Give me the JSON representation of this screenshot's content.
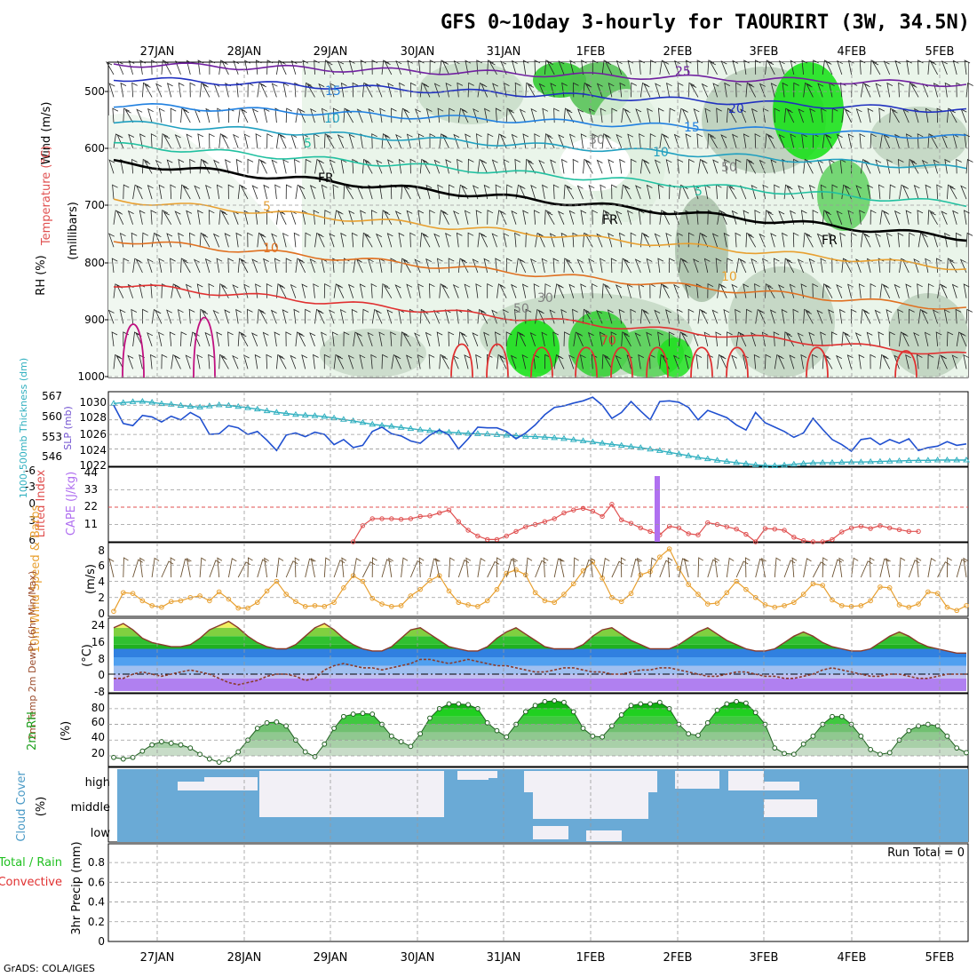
{
  "title": "GFS 0~10day 3-hourly for TAOURIRT (3W, 34.5N)",
  "credit": "GrADS: COLA/IGES",
  "dates": [
    "27JAN",
    "28JAN",
    "29JAN",
    "30JAN",
    "31JAN",
    "1FEB",
    "2FEB",
    "3FEB",
    "4FEB",
    "5FEB"
  ],
  "colors": {
    "temp_warm": "#e8a030",
    "temp_cold": "#2030c0",
    "freezing": "#000000",
    "slp": "#2050d0",
    "thickness": "#30b0c0",
    "lifted": "#e05050",
    "cape": "#b070f0",
    "wind10": "#e8a030",
    "rh2m": "#20c020",
    "cloud": "#6aaad6",
    "cloud_clear": "#f2f0f6"
  },
  "panels": {
    "upper_air": {
      "label_wind": "Wind (m/s)",
      "label_temp": "Temperature (°C)",
      "label_rh": "RH (%)",
      "label_p": "(millibars)",
      "y_ticks": [
        "500",
        "600",
        "700",
        "800",
        "900",
        "1000"
      ],
      "contour_labels": [
        "25",
        "20",
        "15",
        "15",
        "10",
        "10",
        "5",
        "5",
        "FR",
        "FR",
        "FR",
        "5",
        "10",
        "10",
        "50",
        "30",
        "50",
        "30",
        "70"
      ]
    },
    "pressure": {
      "label_thick": "1000-500mb Thickness (dm)",
      "label_slp": "SLP (mb)",
      "thick_ticks": [
        "567",
        "560",
        "553",
        "546"
      ],
      "slp_ticks": [
        "1030",
        "1028",
        "1026",
        "1024",
        "1022"
      ]
    },
    "stability": {
      "label_li": "Lifted Index",
      "label_cape": "CAPE (J/kg)",
      "li_ticks": [
        "-6",
        "-3",
        "0",
        "3",
        "6"
      ],
      "cape_ticks": [
        "44",
        "33",
        "22",
        "11"
      ]
    },
    "wind10": {
      "label": "10m Wind Speed & Barbs",
      "unit": "(m/s)",
      "ticks": [
        "8",
        "6",
        "4",
        "2",
        "0"
      ]
    },
    "temp2m": {
      "label": "2m Temp 2m DewPt (6hr Min/Max)",
      "unit": "(°C)",
      "ticks": [
        "24",
        "16",
        "8",
        "0",
        "-8"
      ]
    },
    "rh2m": {
      "label": "2m RH",
      "unit": "(%)",
      "ticks": [
        "80",
        "60",
        "40",
        "20"
      ]
    },
    "cloud": {
      "label": "Cloud Cover",
      "unit": "(%)",
      "ticks": [
        "high",
        "middle",
        "low"
      ]
    },
    "precip": {
      "label_total": "Total / Rain",
      "label_conv": "Convective",
      "label_precip": "3hr Precip (mm)",
      "ticks": [
        "0.8",
        "0.6",
        "0.4",
        "0.2",
        "0"
      ],
      "run_total": "Run Total = 0"
    }
  },
  "chart_data": [
    {
      "type": "line",
      "name": "SLP",
      "unit": "mb",
      "x_start": "26JAN 18Z",
      "x_step_hours": 3,
      "values": [
        1030.0,
        1027.5,
        1027.2,
        1028.6,
        1028.4,
        1027.7,
        1028.5,
        1028.0,
        1029.0,
        1028.3,
        1026.0,
        1026.1,
        1027.2,
        1026.9,
        1026.0,
        1026.4,
        1025.2,
        1023.8,
        1025.9,
        1026.2,
        1025.7,
        1026.3,
        1026.0,
        1024.6,
        1025.3,
        1024.2,
        1024.5,
        1026.4,
        1027.0,
        1026.1,
        1025.8,
        1025.1,
        1024.8,
        1025.9,
        1026.6,
        1025.9,
        1024.0,
        1025.4,
        1027.0,
        1026.9,
        1026.9,
        1026.4,
        1025.4,
        1026.2,
        1027.3,
        1028.7,
        1029.7,
        1029.9,
        1030.3,
        1030.6,
        1031.1,
        1030.0,
        1028.2,
        1029.0,
        1030.5,
        1029.2,
        1028.0,
        1030.5,
        1030.6,
        1030.4,
        1029.7,
        1028.0,
        1029.3,
        1028.8,
        1028.3,
        1027.3,
        1026.6,
        1029.0,
        1027.6,
        1027.0,
        1026.4,
        1025.6,
        1026.2,
        1028.2,
        1026.7,
        1025.3,
        1024.6,
        1023.7,
        1025.3,
        1025.5,
        1024.6,
        1025.3,
        1024.8,
        1025.4,
        1023.8,
        1024.2,
        1024.4,
        1025.0,
        1024.5,
        1024.7
      ]
    },
    {
      "type": "line",
      "name": "1000-500mb Thickness",
      "unit": "dm",
      "x_start": "26JAN 18Z",
      "x_step_hours": 3,
      "values": [
        566.3,
        566.6,
        566.9,
        567.0,
        566.7,
        566.2,
        566.0,
        565.6,
        565.3,
        565.0,
        565.4,
        565.8,
        565.6,
        565.2,
        564.8,
        564.3,
        563.7,
        563.2,
        562.8,
        562.4,
        562.2,
        562.0,
        561.7,
        561.2,
        560.7,
        560.2,
        559.6,
        559.0,
        558.6,
        558.3,
        557.9,
        557.5,
        557.1,
        556.8,
        556.5,
        556.2,
        556.0,
        555.8,
        555.7,
        555.6,
        555.4,
        555.2,
        555.0,
        554.8,
        554.7,
        554.5,
        554.3,
        554.0,
        553.6,
        553.2,
        552.8,
        552.4,
        552.0,
        551.6,
        551.2,
        550.8,
        550.3,
        549.8,
        549.2,
        548.6,
        548.0,
        547.4,
        546.9,
        546.4,
        546.0,
        545.6,
        545.2,
        544.8,
        544.6,
        544.5,
        544.7,
        545.0,
        545.3,
        545.5,
        545.6,
        545.6,
        545.7,
        545.8,
        545.8,
        545.9,
        546.0,
        546.1,
        546.2,
        546.3,
        546.4,
        546.4,
        546.5,
        546.5,
        546.5,
        546.5
      ]
    },
    {
      "type": "line",
      "name": "Lifted Index",
      "x_start": "29JAN 18Z",
      "x_step_hours": 3,
      "values": [
        6.0,
        3.2,
        2.0,
        2.0,
        2.0,
        2.1,
        2.0,
        1.6,
        1.5,
        1.0,
        0.5,
        2.5,
        4.0,
        5.0,
        5.6,
        5.6,
        5.0,
        4.2,
        3.4,
        3.0,
        2.5,
        2.0,
        1.0,
        0.5,
        0.2,
        0.7,
        1.6,
        -0.5,
        2.2,
        2.8,
        3.6,
        4.2,
        4.8,
        3.3,
        3.6,
        4.6,
        4.8,
        2.7,
        3.0,
        3.4,
        3.8,
        4.7,
        6.0,
        3.7,
        3.8,
        4.0,
        5.2,
        5.8,
        6.0,
        6.0,
        5.6,
        4.3,
        3.6,
        3.3,
        3.7,
        3.2,
        3.6,
        3.9,
        4.2,
        4.2
      ]
    },
    {
      "type": "bar",
      "name": "CAPE",
      "unit": "J/kg",
      "x": [
        "1FEB 18Z"
      ],
      "values": [
        44
      ]
    },
    {
      "type": "line",
      "name": "10m Wind Speed",
      "unit": "m/s",
      "x_start": "26JAN 18Z",
      "x_step_hours": 3,
      "values": [
        0.3,
        2.6,
        2.5,
        1.6,
        1.0,
        0.8,
        1.5,
        1.6,
        2.0,
        2.2,
        1.6,
        2.7,
        1.8,
        0.7,
        0.7,
        1.4,
        2.8,
        4.0,
        2.4,
        1.5,
        0.9,
        1.0,
        0.9,
        1.4,
        3.2,
        4.7,
        4.0,
        1.9,
        1.2,
        0.9,
        1.0,
        2.2,
        3.0,
        4.1,
        4.7,
        2.8,
        1.4,
        1.1,
        0.9,
        1.6,
        3.0,
        5.0,
        5.4,
        4.8,
        2.6,
        1.6,
        1.4,
        2.4,
        3.7,
        5.3,
        6.4,
        4.4,
        2.0,
        1.5,
        2.5,
        4.8,
        5.2,
        7.0,
        8.0,
        5.6,
        3.6,
        2.4,
        1.2,
        1.3,
        2.6,
        4.0,
        3.0,
        2.0,
        1.1,
        0.8,
        1.0,
        1.4,
        2.4,
        3.7,
        3.5,
        1.7,
        1.0,
        0.9,
        1.0,
        1.6,
        3.3,
        3.2,
        1.1,
        0.8,
        1.2,
        2.7,
        2.5,
        0.8,
        0.4,
        1.0
      ]
    },
    {
      "type": "area",
      "name": "2m Temp",
      "unit": "°C",
      "x_start": "26JAN 18Z",
      "x_step_hours": 3,
      "values": [
        22,
        24,
        21,
        17,
        15,
        14,
        13,
        13,
        14,
        17,
        21,
        23,
        25,
        22,
        18,
        15,
        13,
        12,
        12,
        14,
        18,
        22,
        24,
        21,
        17,
        14,
        12,
        11,
        11,
        13,
        17,
        21,
        22,
        19,
        16,
        13,
        12,
        11,
        11,
        13,
        17,
        20,
        22,
        19,
        16,
        13,
        12,
        12,
        12,
        14,
        18,
        21,
        22,
        19,
        16,
        14,
        12,
        12,
        12,
        14,
        17,
        20,
        22,
        19,
        16,
        14,
        12,
        11,
        11,
        12,
        15,
        18,
        20,
        18,
        15,
        13,
        12,
        11,
        11,
        12,
        15,
        18,
        20,
        18,
        15,
        13,
        12,
        11,
        10,
        10
      ]
    },
    {
      "type": "line",
      "name": "2m DewPt",
      "unit": "°C",
      "x_start": "26JAN 18Z",
      "x_step_hours": 3,
      "values": [
        -2,
        -2,
        0,
        1,
        0,
        -1,
        0,
        1,
        2,
        1,
        0,
        -2,
        -4,
        -5,
        -4,
        -3,
        -1,
        0,
        0,
        -1,
        -3,
        -2,
        2,
        4,
        5,
        4,
        3,
        3,
        2,
        3,
        4,
        5,
        7,
        7,
        6,
        5,
        6,
        7,
        6,
        5,
        4,
        4,
        3,
        2,
        1,
        1,
        2,
        3,
        3,
        2,
        1,
        1,
        0,
        0,
        1,
        2,
        2,
        3,
        3,
        2,
        1,
        0,
        -1,
        -1,
        0,
        1,
        1,
        0,
        -1,
        -1,
        -2,
        -2,
        -1,
        0,
        2,
        3,
        2,
        1,
        0,
        -1,
        -1,
        0,
        0,
        -1,
        -2,
        -2,
        -1,
        0,
        0,
        0
      ]
    },
    {
      "type": "area",
      "name": "2m RH",
      "unit": "%",
      "x_start": "26JAN 18Z",
      "x_step_hours": 3,
      "values": [
        18,
        16,
        18,
        26,
        34,
        38,
        36,
        34,
        30,
        22,
        16,
        12,
        15,
        25,
        40,
        55,
        62,
        63,
        58,
        40,
        25,
        19,
        35,
        55,
        70,
        73,
        74,
        73,
        60,
        45,
        38,
        32,
        48,
        68,
        80,
        86,
        86,
        85,
        80,
        62,
        52,
        44,
        60,
        76,
        84,
        89,
        90,
        88,
        76,
        55,
        45,
        44,
        58,
        72,
        84,
        86,
        86,
        88,
        80,
        60,
        48,
        46,
        62,
        78,
        86,
        89,
        87,
        75,
        60,
        30,
        23,
        22,
        35,
        45,
        60,
        70,
        70,
        60,
        45,
        28,
        22,
        24,
        40,
        52,
        58,
        60,
        58,
        45,
        30,
        24
      ]
    }
  ]
}
